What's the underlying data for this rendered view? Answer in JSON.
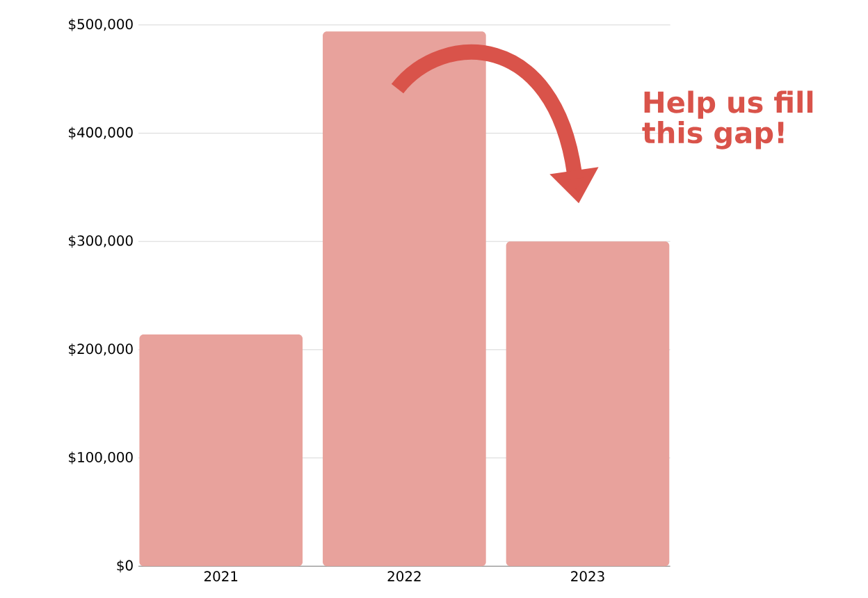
{
  "chart_data": {
    "type": "bar",
    "categories": [
      "2021",
      "2022",
      "2023"
    ],
    "values": [
      214000,
      494000,
      300000
    ],
    "color": "#e8a29c",
    "ylim": [
      0,
      500000
    ],
    "yticks": [
      {
        "value": 0,
        "label": "$0"
      },
      {
        "value": 100000,
        "label": "$100,000"
      },
      {
        "value": 200000,
        "label": "$200,000"
      },
      {
        "value": 300000,
        "label": "$300,000"
      },
      {
        "value": 400000,
        "label": "$400,000"
      },
      {
        "value": 500000,
        "label": "$500,000"
      }
    ],
    "grid": "y",
    "annotations": [
      "Help us fill this gap!"
    ]
  }
}
